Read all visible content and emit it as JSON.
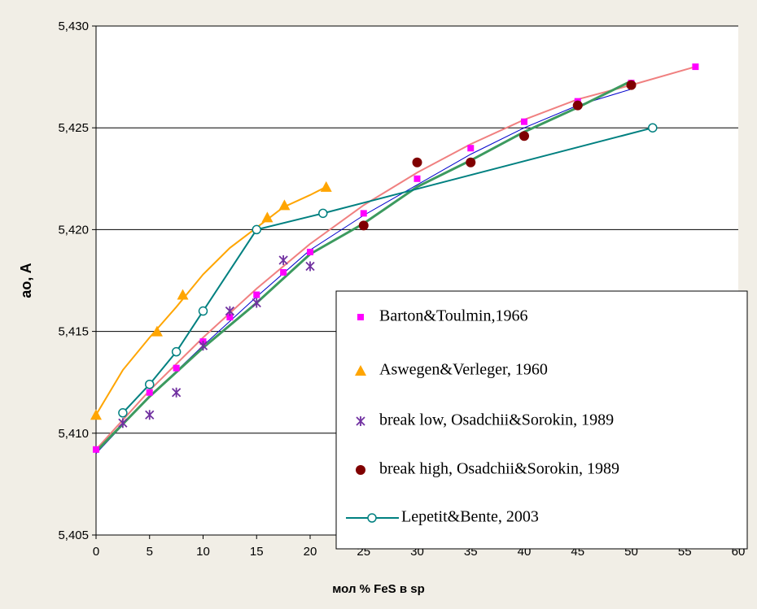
{
  "chart_data": {
    "type": "scatter",
    "x_label": "мол % FeS в sp",
    "y_label": "ao, A",
    "xlim": [
      0,
      60
    ],
    "xticks": [
      0,
      5,
      10,
      15,
      20,
      25,
      30,
      35,
      40,
      45,
      50,
      55,
      60
    ],
    "ylim": [
      5.405,
      5.43
    ],
    "yticks": [
      {
        "value": 5.405,
        "label": "5,405"
      },
      {
        "value": 5.41,
        "label": "5,410"
      },
      {
        "value": 5.415,
        "label": "5,415"
      },
      {
        "value": 5.42,
        "label": "5,420"
      },
      {
        "value": 5.425,
        "label": "5,425"
      },
      {
        "value": 5.43,
        "label": "5,430"
      }
    ],
    "grid": true,
    "series": [
      {
        "name": "Barton&Toulmin,1966",
        "color": "#ff00ff",
        "marker": "square",
        "line": false,
        "x": [
          0,
          5,
          7.5,
          10,
          12.5,
          15,
          17.5,
          20,
          25,
          30,
          35,
          40,
          45,
          50,
          56
        ],
        "values": [
          5.4092,
          5.412,
          5.4132,
          5.4145,
          5.4157,
          5.4168,
          5.4179,
          5.4189,
          5.4208,
          5.4225,
          5.424,
          5.4253,
          5.4263,
          5.4272,
          5.428
        ]
      },
      {
        "name": "Aswegen&Verleger, 1960",
        "color": "#ffa500",
        "marker": "triangle",
        "line": false,
        "x": [
          0,
          5.7,
          8.1,
          16,
          17.6,
          21.5
        ],
        "values": [
          5.4109,
          5.415,
          5.4168,
          5.4206,
          5.4212,
          5.4221
        ]
      },
      {
        "name": "break low, Osadchii&Sorokin, 1989",
        "color": "#7030a0",
        "marker": "asterisk",
        "line": false,
        "x": [
          2.5,
          5,
          7.5,
          10,
          12.5,
          15,
          17.5,
          20
        ],
        "values": [
          5.4105,
          5.4109,
          5.412,
          5.4143,
          5.416,
          5.4164,
          5.4185,
          5.4182
        ]
      },
      {
        "name": "break high, Osadchii&Sorokin, 1989",
        "color": "#800000",
        "marker": "circle",
        "line": false,
        "x": [
          25,
          30,
          35,
          40,
          45,
          50
        ],
        "values": [
          5.4202,
          5.4233,
          5.4233,
          5.4246,
          5.4261,
          5.4271
        ]
      },
      {
        "name": "Lepetit&Bente, 2003",
        "color": "#008080",
        "marker": "open-circle",
        "line": true,
        "x": [
          2.5,
          5,
          7.5,
          10,
          15,
          21.2,
          52
        ],
        "values": [
          5.411,
          5.4124,
          5.414,
          5.416,
          5.42,
          5.4208,
          5.425
        ]
      }
    ],
    "trendlines": [
      {
        "color": "#f08080",
        "width": 2,
        "x": [
          0,
          5,
          10,
          15,
          20,
          25,
          30,
          35,
          40,
          45,
          50,
          56
        ],
        "values": [
          5.4092,
          5.4121,
          5.4147,
          5.4171,
          5.4193,
          5.4212,
          5.4228,
          5.4242,
          5.4254,
          5.4264,
          5.4271,
          5.428
        ]
      },
      {
        "color": "#0000cc",
        "width": 1,
        "x": [
          0,
          5,
          10,
          15,
          20,
          25,
          30,
          35,
          40,
          45,
          50
        ],
        "values": [
          5.409,
          5.4118,
          5.4143,
          5.4167,
          5.419,
          5.4207,
          5.4222,
          5.4237,
          5.425,
          5.4261,
          5.4269
        ]
      },
      {
        "color": "#3c9a5f",
        "width": 3,
        "x": [
          0,
          5,
          10,
          15,
          20,
          25,
          30,
          35,
          40,
          45,
          50
        ],
        "values": [
          5.4091,
          5.4118,
          5.4142,
          5.4164,
          5.4188,
          5.4203,
          5.4221,
          5.4234,
          5.4248,
          5.426,
          5.4273
        ]
      },
      {
        "color": "#ffa500",
        "width": 2,
        "x": [
          0,
          2.5,
          5,
          7.5,
          10,
          12.5,
          15,
          17.5,
          20,
          21.5
        ],
        "values": [
          5.4109,
          5.4131,
          5.4147,
          5.4162,
          5.4178,
          5.4191,
          5.4201,
          5.4211,
          5.4217,
          5.4221
        ]
      }
    ]
  }
}
